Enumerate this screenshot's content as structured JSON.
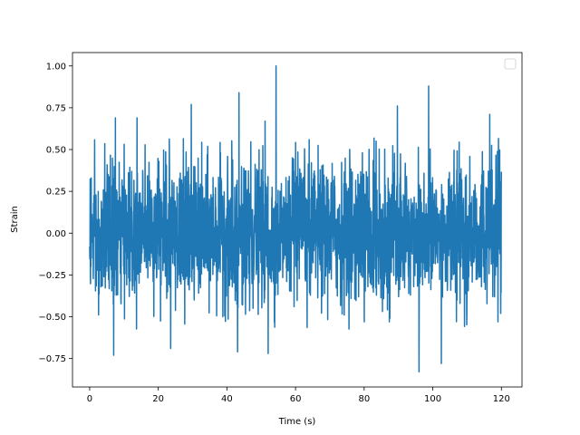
{
  "chart_data": {
    "type": "line",
    "title": "",
    "xlabel": "Time (s)",
    "ylabel": "Strain",
    "xlim": [
      -5,
      126
    ],
    "ylim": [
      -0.92,
      1.08
    ],
    "xticks": [
      0,
      20,
      40,
      60,
      80,
      100,
      120
    ],
    "xtick_labels": [
      "0",
      "20",
      "40",
      "60",
      "80",
      "100",
      "120"
    ],
    "yticks": [
      -0.75,
      -0.5,
      -0.25,
      0.0,
      0.25,
      0.5,
      0.75,
      1.0
    ],
    "ytick_labels": [
      "−0.75",
      "−0.50",
      "−0.25",
      "0.00",
      "0.25",
      "0.50",
      "0.75",
      "1.00"
    ],
    "grid": false,
    "legend": {
      "position": "top-right",
      "entries": []
    },
    "series": [
      {
        "color": "#1f77b4",
        "description": "dense noisy signal, approx. 2400 samples, mostly within ±0.40",
        "x_range": [
          0,
          120
        ],
        "notable_points": [
          {
            "x": 0.0,
            "y": -0.08
          },
          {
            "x": 2.6,
            "y": -0.49
          },
          {
            "x": 7.0,
            "y": -0.73
          },
          {
            "x": 7.5,
            "y": 0.69
          },
          {
            "x": 13.8,
            "y": 0.69
          },
          {
            "x": 23.6,
            "y": -0.69
          },
          {
            "x": 29.6,
            "y": 0.77
          },
          {
            "x": 43.1,
            "y": -0.71
          },
          {
            "x": 43.5,
            "y": 0.84
          },
          {
            "x": 51.1,
            "y": 0.67
          },
          {
            "x": 52.0,
            "y": -0.72
          },
          {
            "x": 54.3,
            "y": 1.0
          },
          {
            "x": 89.7,
            "y": 0.76
          },
          {
            "x": 96.0,
            "y": -0.83
          },
          {
            "x": 98.8,
            "y": 0.88
          },
          {
            "x": 102.5,
            "y": -0.78
          },
          {
            "x": 116.6,
            "y": 0.71
          },
          {
            "x": 119.8,
            "y": -0.48
          }
        ]
      }
    ]
  }
}
